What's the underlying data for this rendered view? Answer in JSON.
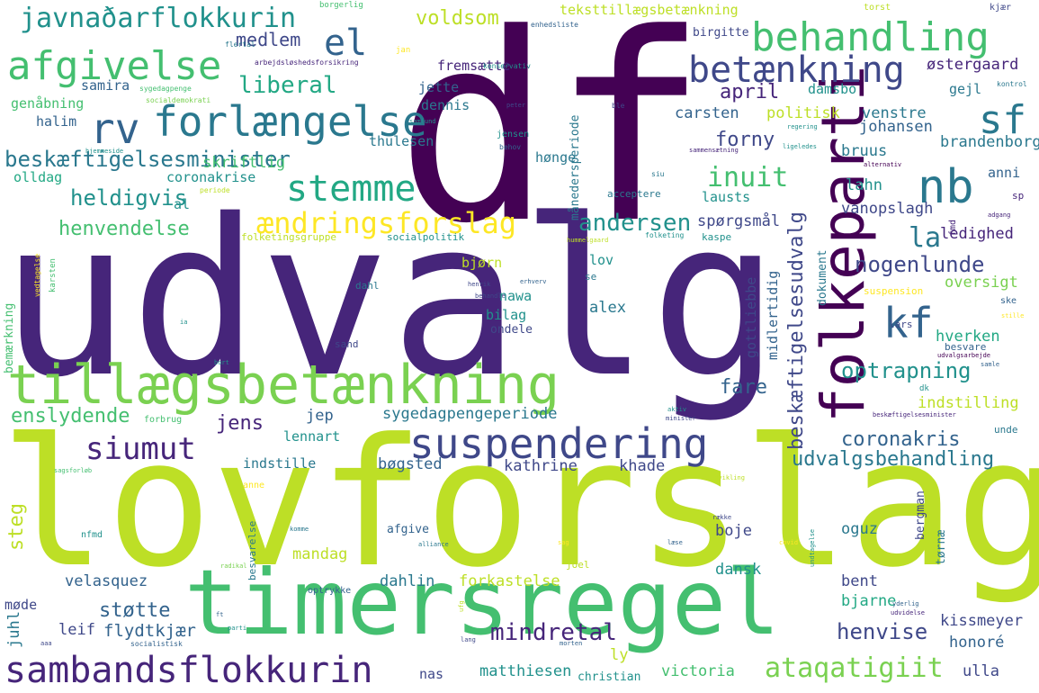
{
  "words": {
    "udvalg": "udvalg",
    "lovforslag": "lovforslag",
    "df": "df",
    "timersregel": "timersregel",
    "tillaegsbetaenkning": "tillægsbetænkning",
    "folkeparti": "folkeparti",
    "sambandsflokkurin": "sambandsflokkurin",
    "suspendering": "suspendering",
    "forlaengelse": "forlængelse",
    "afgivelse": "afgivelse",
    "behandling": "behandling",
    "betaenkning": "betænkning",
    "nb": "nb",
    "kf": "kf",
    "sf": "sf",
    "rv": "rv",
    "el": "el",
    "stemme": "stemme",
    "javnadarflokkurin": "javnaðarflokkurin",
    "aendringsforslag": "ændringsforslag",
    "siumut": "siumut",
    "ataqatigiit": "ataqatigiit",
    "liberal": "liberal",
    "beskaeftigelsesminister": "beskæftigelsesminister",
    "beskaeftigelsesudvalg": "beskæftigelsesudvalg",
    "optrapning": "optrapning",
    "inuit": "inuit",
    "andersen": "andersen",
    "la": "la",
    "nogenlunde": "nogenlunde",
    "coronakris": "coronakris",
    "udvalgsbehandling": "udvalgsbehandling",
    "henvise": "henvise",
    "mindretal": "mindretal",
    "voldsom": "voldsom",
    "april": "april",
    "medlem": "medlem",
    "forny": "forny",
    "heldigvis": "heldigvis",
    "henvendelse": "henvendelse",
    "enslydende": "enslydende",
    "jens": "jens",
    "stotte": "støtte",
    "steg": "steg",
    "fare": "fare",
    "sygedagpengeperiode": "sygedagpengeperiode",
    "teksttillaegsbetaenkning": "teksttillægsbetænkning",
    "skriftlig": "skriftlig",
    "carsten": "carsten",
    "politisk": "politisk",
    "venstre": "venstre",
    "johansen": "johansen",
    "brandenborg": "brandenborg",
    "oestergaard": "østergaard",
    "bruus": "bruus",
    "lahn": "lahn",
    "vanopslagh": "vanopslagh",
    "ledighed": "ledighed",
    "oversigt": "oversigt",
    "hverken": "hverken",
    "indstilling": "indstilling",
    "kissmeyer": "kissmeyer",
    "honore": "honoré",
    "ulla": "ulla",
    "victoria": "victoria",
    "matthiesen": "matthiesen",
    "christian": "christian",
    "flydtkjaer": "flydtkjær",
    "leif": "leif",
    "juhl": "juhl",
    "mode": "møde",
    "velasquez": "velasquez",
    "dahlin": "dahlin",
    "forkastelse": "forkastelse",
    "dansk": "dansk",
    "bent": "bent",
    "bjarne": "bjarne",
    "boje": "boje",
    "oguz": "oguz",
    "mandag": "mandag",
    "bogsted": "bøgsted",
    "kathrine": "kathrine",
    "khade": "khade",
    "indstille": "indstille",
    "lennart": "lennart",
    "jep": "jep",
    "alex": "alex",
    "bilag": "bilag",
    "ondele": "ondele",
    "nawa": "nawa",
    "bjorn": "bjørn",
    "lov": "lov",
    "spoergsmaal": "spørgsmål",
    "lausts": "lausts",
    "gottliebbe": "gottliebbe",
    "midlertidig": "midlertidig",
    "dokument": "dokument",
    "coronakrise": "coronakrise",
    "olldag": "olldag",
    "halim": "halim",
    "genaabning": "genåbning",
    "samira": "samira",
    "thulesen": "thulesen",
    "dennis": "dennis",
    "jette": "jette",
    "fremsaette": "fremsætte",
    "hoenge": "hønge",
    "damsbo": "damsbo",
    "gejl": "gejl",
    "anni": "anni",
    "birgitte": "birgitte",
    "al": "al",
    "ly": "ly",
    "nas": "nas",
    "bergman": "bergman",
    "tornae": "tørnæ",
    "afgive": "afgive",
    "bemaerkning": "bemærkning",
    "maanedersperiode": "månedersperiode",
    "acceptere": "acceptere",
    "folketingsgruppe": "folketingsgruppe",
    "socialpolitik": "socialpolitik",
    "jensen": "jensen",
    "kaspe": "kaspe",
    "dahl": "dahl",
    "sand": "sand",
    "lars": "lars",
    "besvare": "besvare",
    "unde": "unde",
    "sp": "sp",
    "fmd": "fmd",
    "dk": "dk",
    "suspension": "suspension",
    "se": "se",
    "joel": "joel",
    "besvarelse": "besvarelse",
    "optrykke": "optrykke",
    "forbrug": "forbrug",
    "nfmd": "nfmd",
    "anne": "anne",
    "ske": "ske",
    "borgerlig": "borgerlig",
    "torst": "torst",
    "kjaer": "kjær",
    "jan": "jan",
    "konservativ": "konservativ",
    "flertal": "flertal",
    "arbejdsloeshedsforsikring": "arbejdsløshedsforsikring",
    "enhedsliste": "enhedsliste",
    "sygedagpenge": "sygedagpenge",
    "socialdemokrati": "socialdemokrati",
    "kontrol": "kontrol",
    "peter": "peter",
    "ble": "ble",
    "regering": "regering",
    "samfund": "samfund",
    "behov": "behov",
    "sammensaetning": "sammensætning",
    "ligeledes": "ligeledes",
    "alternativ": "alternativ",
    "siu": "siu",
    "hjemmeside": "hjemmeside",
    "periode": "periode",
    "hummelgaard": "hummelgaard",
    "folketing": "folketing",
    "adgang": "adgang",
    "karsten": "karsten",
    "vedtagelse": "vedtagelse",
    "henrik": "henrik",
    "erhverv": "erhverv",
    "behandle": "behandle",
    "stille": "stille",
    "ia": "ia",
    "bort": "bort",
    "samle": "samle",
    "udvalgsarbejde": "udvalgsarbejde",
    "aktiv": "aktiv",
    "minister": "minister",
    "beskaeftigelsesminister_small": "beskæftigelsesminister",
    "sagsforloeb": "sagsforløb",
    "udvikling": "udvikling",
    "raekke": "række",
    "komme": "komme",
    "alliance": "alliance",
    "sag": "sag",
    "laese": "læse",
    "covid": "covid",
    "undtagelse": "undtagelse",
    "radikal": "radikal",
    "ufg": "ufg",
    "ft": "ft",
    "parti": "parti",
    "udvidelse": "udvidelse",
    "yderlig": "yderlig",
    "socialistisk": "socialistisk",
    "lang": "lang",
    "morten": "morten",
    "aaa": "aaa"
  },
  "palette": [
    "#440154",
    "#46257a",
    "#3f4889",
    "#33638d",
    "#2a788e",
    "#21918c",
    "#22a884",
    "#44bf70",
    "#7ad151",
    "#bddf26",
    "#fde725"
  ]
}
